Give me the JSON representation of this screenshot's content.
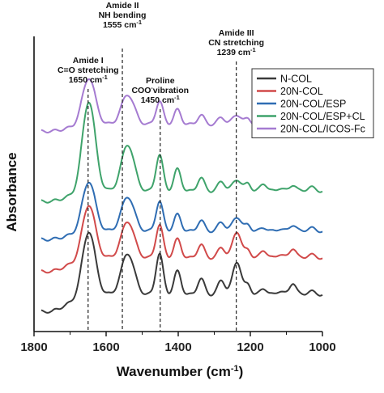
{
  "chart_data": {
    "type": "line",
    "title": "",
    "xlabel": "Wavenumber (cm",
    "xlabel_sup": "-1",
    "xlabel_close": ")",
    "ylabel": "Absorbance",
    "xlim": [
      1800,
      1000
    ],
    "x_reversed": true,
    "xticks": [
      1800,
      1600,
      1400,
      1200,
      1000
    ],
    "y_ticks_shown": false,
    "grid": false,
    "legend_position": "top-right",
    "annotations": [
      {
        "x": 1650,
        "lines": [
          "Amide I",
          "C=O stretching",
          "1650 cm"
        ],
        "sup": "-1"
      },
      {
        "x": 1555,
        "lines": [
          "Amide II",
          "NH bending",
          "1555 cm"
        ],
        "sup": "-1"
      },
      {
        "x": 1450,
        "lines": [
          "Proline",
          "COO",
          "1450 cm"
        ],
        "sup": "-1",
        "coo_suffix": "vibration"
      },
      {
        "x": 1239,
        "lines": [
          "Amide III",
          "CN stretching",
          "1239 cm"
        ],
        "sup": "-1"
      }
    ],
    "series": [
      {
        "name": "N-COL",
        "color": "#3a3a3a",
        "offset": 0.0,
        "tail_offset": -0.25,
        "amps": [
          0.95,
          0.62,
          0.62,
          0.35,
          0.24,
          0.22,
          0.15,
          0.5,
          0.18,
          0.05,
          0.1,
          0.06
        ]
      },
      {
        "name": "20N-COL",
        "color": "#d14a4a",
        "offset": 0.55,
        "tail_offset": -0.2,
        "amps": [
          0.8,
          0.55,
          0.5,
          0.28,
          0.2,
          0.16,
          0.12,
          0.4,
          0.15,
          0.05,
          0.12,
          0.06
        ]
      },
      {
        "name": "20N-COL/ESP",
        "color": "#2f6db3",
        "offset": 0.95,
        "tail_offset": -0.12,
        "amps": [
          0.75,
          0.52,
          0.45,
          0.25,
          0.16,
          0.14,
          0.1,
          0.22,
          0.1,
          0.05,
          0.06,
          0.04
        ]
      },
      {
        "name": "20N-COL/ESP+CL",
        "color": "#3fa36b",
        "offset": 1.55,
        "tail_offset": -0.15,
        "amps": [
          1.35,
          0.7,
          0.55,
          0.33,
          0.2,
          0.15,
          0.12,
          0.18,
          0.1,
          0.06,
          0.12,
          0.05
        ]
      },
      {
        "name": "20N-COL/ICOS-Fc",
        "color": "#a57bd1",
        "offset": 2.55,
        "tail_offset": -0.1,
        "amps": [
          0.7,
          0.45,
          0.35,
          0.22,
          0.14,
          0.11,
          0.09,
          0.15,
          0.08,
          0.04,
          0.08,
          0.04
        ]
      }
    ]
  }
}
